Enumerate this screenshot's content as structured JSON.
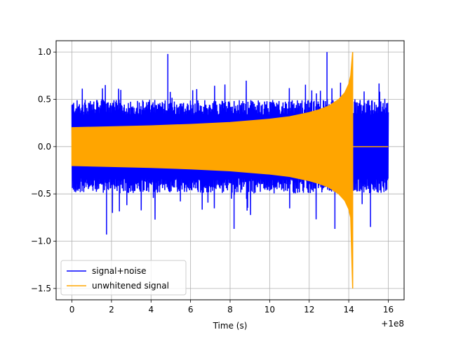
{
  "chart_data": {
    "type": "line",
    "xlabel": "Time (s)",
    "ylabel": "",
    "title": "",
    "x_offset_label": "+1e8",
    "xlim": [
      -0.8,
      16.8
    ],
    "ylim": [
      -1.62,
      1.12
    ],
    "xticks": [
      0,
      2,
      4,
      6,
      8,
      10,
      12,
      14,
      16
    ],
    "xtick_labels": [
      "0",
      "2",
      "4",
      "6",
      "8",
      "10",
      "12",
      "14",
      "16"
    ],
    "yticks": [
      -1.5,
      -1.0,
      -0.5,
      0.0,
      0.5,
      1.0
    ],
    "ytick_labels": [
      "−1.5",
      "−1.0",
      "−0.5",
      "0.0",
      "0.5",
      "1.0"
    ],
    "grid": true,
    "legend_position": "lower-left",
    "series": [
      {
        "name": "signal+noise",
        "color": "#0000ff",
        "x_range": [
          0,
          16
        ],
        "baseline_amplitude": 0.45,
        "max": 1.0,
        "min": -0.93
      },
      {
        "name": "unwhitened signal",
        "color": "#ffa500",
        "x_range": [
          0,
          14.2
        ],
        "envelope_points": [
          [
            0,
            0.2
          ],
          [
            2,
            0.21
          ],
          [
            4,
            0.22
          ],
          [
            6,
            0.235
          ],
          [
            8,
            0.255
          ],
          [
            10,
            0.29
          ],
          [
            11,
            0.315
          ],
          [
            12,
            0.36
          ],
          [
            12.5,
            0.39
          ],
          [
            13,
            0.43
          ],
          [
            13.5,
            0.5
          ],
          [
            13.8,
            0.57
          ],
          [
            14.0,
            0.66
          ],
          [
            14.1,
            0.75
          ],
          [
            14.2,
            1.0
          ]
        ],
        "spike_min": -1.5,
        "after_value": 0.0,
        "after_range": [
          14.2,
          16
        ]
      }
    ]
  }
}
